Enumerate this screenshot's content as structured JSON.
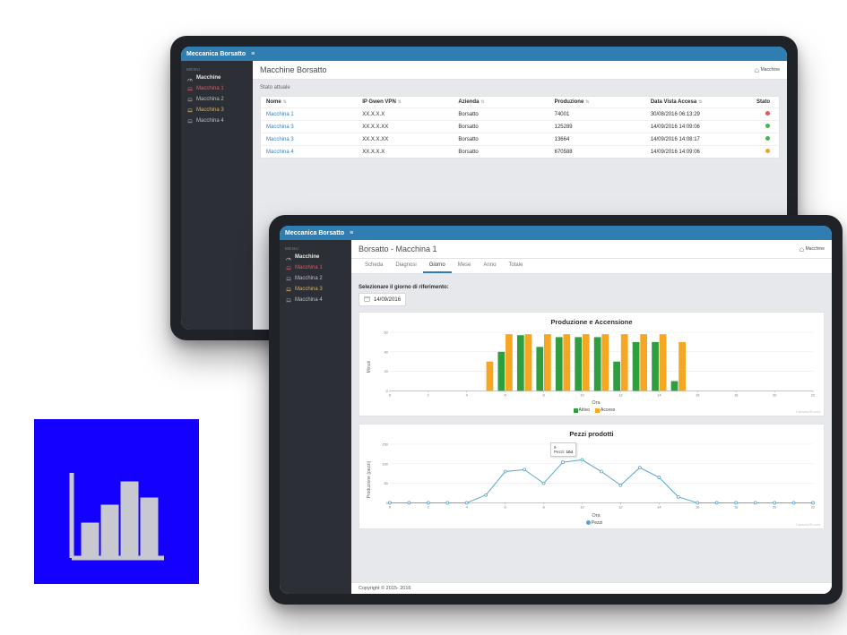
{
  "app": {
    "brand": "Meccanica Borsatto"
  },
  "colors": {
    "topbar": "#2f7db1",
    "sidebar": "#2c3036",
    "main_bg": "#e6e8eb",
    "link": "#3a7fb5",
    "sidebar_mac1": "#e05a5a",
    "sidebar_mac3": "#e0b05a",
    "status_green": "#4caf50",
    "status_red": "#e05a5a",
    "status_orange": "#f0a030",
    "bar_attivo": "#2e9e3f",
    "bar_acceso": "#f5a623",
    "line_pezzi": "#5aa5c9",
    "grid": "#e6e6e6",
    "axis": "#aaaaaa",
    "logo_bg": "#1400ff",
    "logo_stroke": "#c8c8d0"
  },
  "fonts": {
    "base_family": "Helvetica Neue, Arial, sans-serif"
  },
  "tablet1": {
    "sidebar": {
      "menu_label": "MENU",
      "machines_label": "Macchine",
      "items": [
        {
          "label": "Macchina 1",
          "variant": "mac-1"
        },
        {
          "label": "Macchina 2",
          "variant": ""
        },
        {
          "label": "Macchina 3",
          "variant": "mac-3"
        },
        {
          "label": "Macchina 4",
          "variant": ""
        }
      ]
    },
    "page": {
      "title": "Macchine Borsatto",
      "crumb": "Macchine",
      "subtitle": "Stato  attuale"
    },
    "table": {
      "columns": [
        "Nome",
        "IP Gwen VPN",
        "Azienda",
        "Produzione",
        "Data Vista Accesa",
        "Stato"
      ],
      "rows": [
        {
          "nome": "Macchina 1",
          "ip": "XX.X.X.X",
          "azienda": "Borsatto",
          "prod": "74001",
          "data": "30/08/2016 06:13:29",
          "status_color": "#e05a5a"
        },
        {
          "nome": "Macchina 3",
          "ip": "XX.X.X.XX",
          "azienda": "Borsatto",
          "prod": "125289",
          "data": "14/09/2016 14:09:06",
          "status_color": "#4caf50"
        },
        {
          "nome": "Macchina 3",
          "ip": "XX.X.X.XX",
          "azienda": "Borsatto",
          "prod": "13664",
          "data": "14/09/2016 14:08:17",
          "status_color": "#4caf50"
        },
        {
          "nome": "Macchina 4",
          "ip": "XX.X.X.X",
          "azienda": "Borsatto",
          "prod": "670588",
          "data": "14/09/2016 14:09:06",
          "status_color": "#f0a030"
        }
      ]
    }
  },
  "tablet2": {
    "sidebar": {
      "menu_label": "MENU",
      "machines_label": "Macchine",
      "items": [
        {
          "label": "Macchina 1",
          "variant": "mac-1"
        },
        {
          "label": "Macchina 2",
          "variant": ""
        },
        {
          "label": "Macchina 3",
          "variant": "mac-3"
        },
        {
          "label": "Macchina 4",
          "variant": ""
        }
      ]
    },
    "page": {
      "title": "Borsatto - Macchina 1",
      "crumb": "Macchine"
    },
    "tabs": {
      "items": [
        "Scheda",
        "Diagnosi",
        "Giorno",
        "Mese",
        "Anno",
        "Totale"
      ],
      "active_index": 2
    },
    "date_sel": {
      "label": "Selezionare il giorno di riferimento:",
      "value": "14/09/2016"
    },
    "chart1": {
      "type": "grouped-bar",
      "title": "Produzione e Accensione",
      "ylabel": "Minuti",
      "xlabel": "Ora",
      "ylim": [
        0,
        60
      ],
      "ytick_step": 20,
      "xlim": [
        0,
        22
      ],
      "xtick_step": 2,
      "bar_width": 0.38,
      "colors": {
        "Attivo": "#2e9e3f",
        "Acceso": "#f5a623"
      },
      "grid_color": "#e6e6e6",
      "axis_color": "#aaaaaa",
      "legend": [
        "Attivo",
        "Acceso"
      ],
      "data": [
        {
          "hour": 5,
          "attivo": 0,
          "acceso": 30
        },
        {
          "hour": 6,
          "attivo": 40,
          "acceso": 58
        },
        {
          "hour": 7,
          "attivo": 57,
          "acceso": 58
        },
        {
          "hour": 8,
          "attivo": 45,
          "acceso": 58
        },
        {
          "hour": 9,
          "attivo": 55,
          "acceso": 58
        },
        {
          "hour": 10,
          "attivo": 55,
          "acceso": 58
        },
        {
          "hour": 11,
          "attivo": 55,
          "acceso": 58
        },
        {
          "hour": 12,
          "attivo": 30,
          "acceso": 58
        },
        {
          "hour": 13,
          "attivo": 50,
          "acceso": 58
        },
        {
          "hour": 14,
          "attivo": 50,
          "acceso": 58
        },
        {
          "hour": 15,
          "attivo": 10,
          "acceso": 50
        }
      ],
      "attribution": "CanvasJS.com"
    },
    "chart2": {
      "type": "line",
      "title": "Pezzi prodotti",
      "ylabel": "Produzione  (pezzi)",
      "xlabel": "Ora",
      "ylim": [
        0,
        150
      ],
      "ytick_step": 50,
      "xlim": [
        0,
        22
      ],
      "xtick_step": 2,
      "color": "#5aa5c9",
      "marker": "circle",
      "marker_size": 3,
      "line_width": 1,
      "grid_color": "#e6e6e6",
      "axis_color": "#aaaaaa",
      "legend": [
        "Pezzi"
      ],
      "points": [
        [
          0,
          0
        ],
        [
          1,
          0
        ],
        [
          2,
          0
        ],
        [
          3,
          0
        ],
        [
          4,
          0
        ],
        [
          5,
          20
        ],
        [
          6,
          80
        ],
        [
          7,
          85
        ],
        [
          8,
          50
        ],
        [
          9,
          104
        ],
        [
          10,
          110
        ],
        [
          11,
          80
        ],
        [
          12,
          45
        ],
        [
          13,
          90
        ],
        [
          14,
          65
        ],
        [
          15,
          15
        ],
        [
          16,
          0
        ],
        [
          17,
          0
        ],
        [
          18,
          0
        ],
        [
          19,
          0
        ],
        [
          20,
          0
        ],
        [
          21,
          0
        ],
        [
          22,
          0
        ]
      ],
      "tooltip": {
        "at_index": 9,
        "lines": [
          "9",
          "Pezzi: 104"
        ]
      },
      "attribution": "CanvasJS.com"
    },
    "footer": "Copyright © 2015- 2016"
  },
  "logo_tile": {
    "type": "bar-chart-icon"
  }
}
